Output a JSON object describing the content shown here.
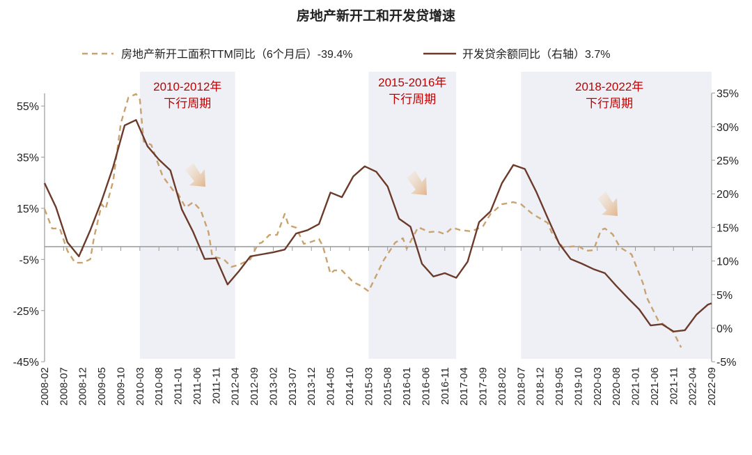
{
  "chart_data": {
    "type": "line",
    "title": "房地产新开工和开发贷增速",
    "legend_position": "top",
    "grid": false,
    "colors": {
      "series_dashed": "#c8a270",
      "series_solid": "#6b3a2a",
      "annotation": "#c00000",
      "shade": "#eef0f5",
      "axis": "#999999"
    },
    "left_axis": {
      "ylim": [
        -45,
        60
      ],
      "ticks": [
        "55%",
        "35%",
        "15%",
        "-5%",
        "-25%",
        "-45%"
      ],
      "tick_values": [
        55,
        35,
        15,
        -5,
        -25,
        -45
      ]
    },
    "right_axis": {
      "ylim": [
        -5,
        35
      ],
      "ticks": [
        "35%",
        "30%",
        "25%",
        "20%",
        "15%",
        "10%",
        "5%",
        "0%",
        "-5%"
      ],
      "tick_values": [
        35,
        30,
        25,
        20,
        15,
        10,
        5,
        0,
        -5
      ]
    },
    "x_ticks": [
      "2008-02",
      "2008-07",
      "2008-12",
      "2009-05",
      "2009-10",
      "2010-03",
      "2010-08",
      "2011-01",
      "2011-06",
      "2011-11",
      "2012-04",
      "2012-09",
      "2013-02",
      "2013-07",
      "2013-12",
      "2014-05",
      "2014-10",
      "2015-03",
      "2015-08",
      "2016-01",
      "2016-06",
      "2016-11",
      "2017-04",
      "2017-09",
      "2018-02",
      "2018-07",
      "2018-12",
      "2019-05",
      "2019-10",
      "2020-03",
      "2020-08",
      "2021-01",
      "2021-06",
      "2021-11",
      "2022-04",
      "2022-09"
    ],
    "shaded_periods": [
      {
        "start": "2010-03",
        "end": "2012-04",
        "label_line1": "2010-2012年",
        "label_line2": "下行周期"
      },
      {
        "start": "2015-03",
        "end": "2017-02",
        "label_line1": "2015-2016年",
        "label_line2": "下行周期"
      },
      {
        "start": "2018-07",
        "end": "2022-09",
        "label_line1": "2018-2022年",
        "label_line2": "下行周期"
      }
    ],
    "series": [
      {
        "name": "房地产新开工面积TTM同比（6个月后）-39.4%",
        "axis": "left",
        "style": "dashed",
        "x": [
          "2008-02",
          "2008-04",
          "2008-06",
          "2008-08",
          "2008-10",
          "2008-12",
          "2009-02",
          "2009-03",
          "2009-05",
          "2009-06",
          "2009-08",
          "2009-10",
          "2009-12",
          "2010-02",
          "2010-03",
          "2010-04",
          "2010-06",
          "2010-09",
          "2010-12",
          "2011-01",
          "2011-03",
          "2011-05",
          "2011-07",
          "2011-09",
          "2011-10",
          "2012-01",
          "2012-03",
          "2012-05",
          "2012-08",
          "2012-10",
          "2012-11",
          "2013-01",
          "2013-03",
          "2013-05",
          "2013-06",
          "2013-08",
          "2013-10",
          "2013-12",
          "2014-02",
          "2014-03",
          "2014-05",
          "2014-06",
          "2014-08",
          "2014-11",
          "2015-01",
          "2015-03",
          "2015-04",
          "2015-07",
          "2015-10",
          "2015-12",
          "2016-01",
          "2016-04",
          "2016-07",
          "2016-09",
          "2016-11",
          "2017-01",
          "2017-03",
          "2017-06",
          "2017-09",
          "2017-11",
          "2018-02",
          "2018-05",
          "2018-07",
          "2018-10",
          "2019-02",
          "2019-03",
          "2019-06",
          "2019-10",
          "2019-12",
          "2020-02",
          "2020-04",
          "2020-05",
          "2020-07",
          "2020-09",
          "2020-12",
          "2021-03",
          "2021-04",
          "2021-07",
          "2021-09",
          "2021-11",
          "2022-01"
        ],
        "values": [
          14.7,
          7.1,
          7.1,
          -1.6,
          -6.3,
          -6.3,
          -4.9,
          3.8,
          16.6,
          14.7,
          25.6,
          48.2,
          58.3,
          59.7,
          57.5,
          41.1,
          39.8,
          27.5,
          21.5,
          20.7,
          15.3,
          17.4,
          14.2,
          5.7,
          -3.8,
          -4.9,
          -7.9,
          -7.1,
          -4.9,
          1.1,
          1.6,
          4.6,
          4.6,
          12.8,
          8.4,
          7.4,
          1.1,
          1.9,
          3.0,
          0.3,
          -10.6,
          -9.3,
          -9.3,
          -13.9,
          -15.3,
          -17.4,
          -14.4,
          -5.2,
          1.6,
          3.3,
          -0.8,
          7.6,
          5.7,
          6.0,
          4.9,
          7.4,
          6.5,
          6.0,
          7.9,
          12.8,
          16.6,
          17.4,
          16.6,
          12.8,
          9.3,
          5.7,
          -0.3,
          0.3,
          -1.6,
          -1.4,
          6.5,
          7.1,
          4.9,
          -0.3,
          -3.0,
          -14.4,
          -19.9,
          -28.9,
          -31.1,
          -33.5,
          -39.4
        ]
      },
      {
        "name": "开发贷余额同比（右轴）3.7%",
        "axis": "right",
        "style": "solid",
        "x": [
          "2008-02",
          "2008-05",
          "2008-08",
          "2008-11",
          "2009-02",
          "2009-05",
          "2009-08",
          "2009-11",
          "2010-02",
          "2010-05",
          "2010-08",
          "2010-11",
          "2011-02",
          "2011-05",
          "2011-08",
          "2011-11",
          "2012-02",
          "2012-05",
          "2012-08",
          "2012-11",
          "2013-02",
          "2013-05",
          "2013-08",
          "2013-11",
          "2014-02",
          "2014-05",
          "2014-08",
          "2014-11",
          "2015-02",
          "2015-05",
          "2015-08",
          "2015-11",
          "2016-02",
          "2016-05",
          "2016-08",
          "2016-11",
          "2017-02",
          "2017-05",
          "2017-08",
          "2017-11",
          "2018-02",
          "2018-05",
          "2018-08",
          "2018-11",
          "2019-02",
          "2019-05",
          "2019-08",
          "2019-11",
          "2020-02",
          "2020-05",
          "2020-08",
          "2020-11",
          "2021-02",
          "2021-05",
          "2021-08",
          "2021-11",
          "2022-02",
          "2022-05",
          "2022-08",
          "2022-09"
        ],
        "values": [
          21.6,
          18.0,
          12.8,
          10.7,
          14.6,
          19.0,
          24.0,
          30.2,
          31.0,
          27.1,
          25.1,
          23.5,
          17.7,
          14.3,
          10.3,
          10.4,
          6.5,
          8.5,
          10.7,
          11.0,
          11.3,
          11.7,
          14.1,
          14.6,
          15.5,
          20.2,
          19.5,
          22.6,
          24.1,
          23.3,
          21.1,
          16.3,
          15.1,
          9.6,
          7.7,
          8.2,
          7.5,
          9.9,
          15.8,
          17.4,
          21.6,
          24.3,
          23.7,
          20.3,
          16.4,
          12.6,
          10.3,
          9.6,
          8.8,
          8.2,
          6.3,
          4.5,
          2.8,
          0.4,
          0.6,
          -0.5,
          -0.3,
          2.0,
          3.5,
          3.7
        ]
      }
    ]
  }
}
